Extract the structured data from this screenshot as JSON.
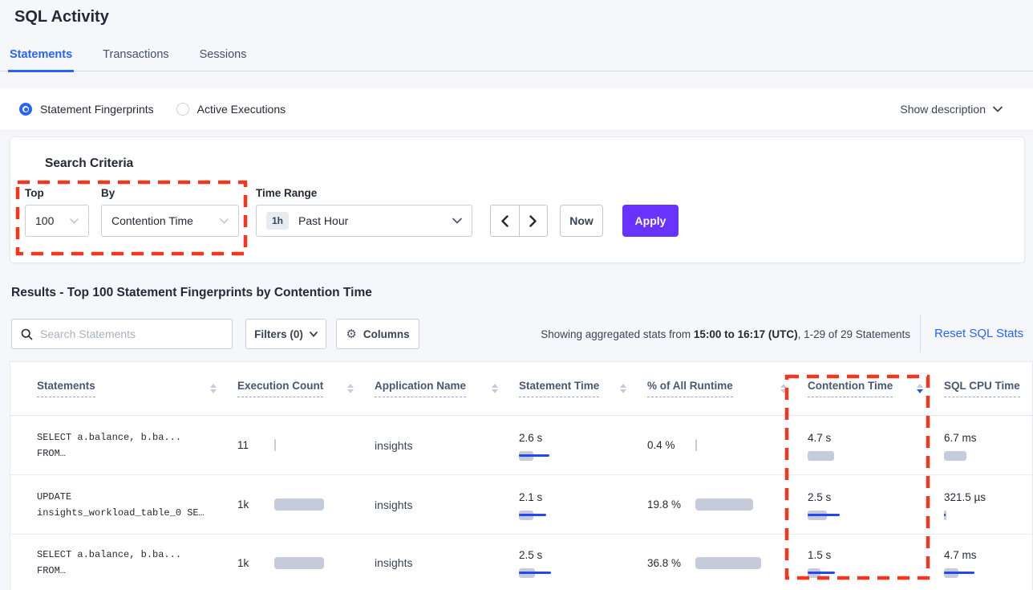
{
  "page": {
    "title": "SQL Activity"
  },
  "tabs": {
    "items": [
      {
        "label": "Statements"
      },
      {
        "label": "Transactions"
      },
      {
        "label": "Sessions"
      }
    ]
  },
  "view_bar": {
    "fingerprints_label": "Statement Fingerprints",
    "active_executions_label": "Active Executions",
    "show_description_label": "Show description"
  },
  "search_criteria": {
    "heading": "Search Criteria",
    "top_label": "Top",
    "top_value": "100",
    "by_label": "By",
    "by_value": "Contention Time",
    "time_range_label": "Time Range",
    "time_range_badge": "1h",
    "time_range_value": "Past Hour",
    "now_label": "Now",
    "apply_label": "Apply"
  },
  "results_bar": {
    "heading": "Results - Top 100 Statement Fingerprints by Contention Time",
    "search_placeholder": "Search Statements",
    "filters_label": "Filters (0)",
    "columns_label": "Columns",
    "showing_prefix": "Showing aggregated stats from ",
    "showing_range": "15:00 to 16:17 (UTC)",
    "showing_suffix": ", 1-29 of 29 Statements",
    "reset_label": "Reset SQL Stats"
  },
  "table": {
    "headers": [
      {
        "label": "Statements",
        "sorted": "none"
      },
      {
        "label": "Execution Count",
        "sorted": "none"
      },
      {
        "label": "Application Name",
        "sorted": "none"
      },
      {
        "label": "Statement Time",
        "sorted": "none"
      },
      {
        "label": "% of All Runtime",
        "sorted": "none"
      },
      {
        "label": "Contention Time",
        "sorted": "desc"
      },
      {
        "label": "SQL CPU Time",
        "sorted": "none"
      }
    ],
    "rows": [
      {
        "statement_line1": "SELECT a.balance, b.ba...",
        "statement_line2": "FROM…",
        "exec": {
          "text": "11",
          "bar": 2,
          "line": 0
        },
        "app": "insights",
        "stmt_time": {
          "text": "2.6 s",
          "bar": 18,
          "line": 38
        },
        "runtime": {
          "text": "0.4 %",
          "bar": 2,
          "line": 0
        },
        "contention": {
          "text": "4.7 s",
          "bar": 33,
          "line": 0
        },
        "cpu": {
          "text": "6.7 ms",
          "bar": 28,
          "line": 0
        }
      },
      {
        "statement_line1": "UPDATE",
        "statement_line2": "insights_workload_table_0 SE…",
        "exec": {
          "text": "1k",
          "bar": 62,
          "line": 0
        },
        "app": "insights",
        "stmt_time": {
          "text": "2.1 s",
          "bar": 18,
          "line": 34
        },
        "runtime": {
          "text": "19.8 %",
          "bar": 72,
          "line": 0
        },
        "contention": {
          "text": "2.5 s",
          "bar": 24,
          "line": 40
        },
        "cpu": {
          "text": "321.5 µs",
          "bar": 3,
          "line": 2
        }
      },
      {
        "statement_line1": "SELECT a.balance, b.ba...",
        "statement_line2": "FROM…",
        "exec": {
          "text": "1k",
          "bar": 62,
          "line": 0
        },
        "app": "insights",
        "stmt_time": {
          "text": "2.5 s",
          "bar": 20,
          "line": 40
        },
        "runtime": {
          "text": "36.8 %",
          "bar": 82,
          "line": 0
        },
        "contention": {
          "text": "1.5 s",
          "bar": 16,
          "line": 34
        },
        "cpu": {
          "text": "4.7 ms",
          "bar": 18,
          "line": 38
        }
      }
    ]
  },
  "colors": {
    "accent_blue": "#2962ff",
    "apply_purple": "#6933ff",
    "bar_gray": "#c6cbdc",
    "bar_blue": "#2347f5",
    "annotation_red": "#f5351c"
  }
}
